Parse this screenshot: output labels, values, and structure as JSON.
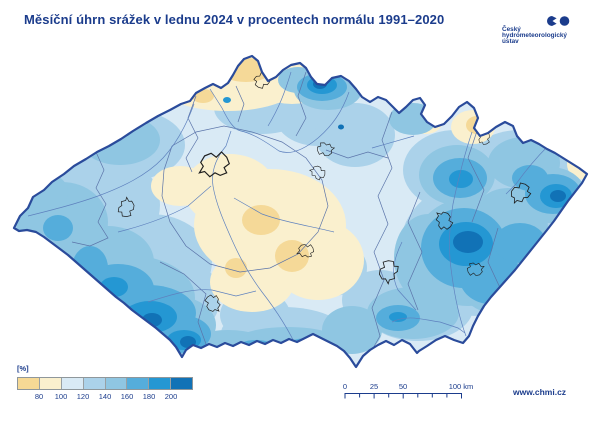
{
  "title": "Měsíční úhrn srážek v lednu 2024 v procentech normálu 1991–2020",
  "logo": {
    "line1": "Český",
    "line2": "hydrometeorologický",
    "line3": "ústav"
  },
  "legend": {
    "unit": "[%]",
    "ticks": [
      "80",
      "100",
      "120",
      "140",
      "160",
      "180",
      "200"
    ],
    "colors": [
      "#F6D995",
      "#FAF0CE",
      "#D9EAF5",
      "#ABD2EA",
      "#8FC6E2",
      "#55ADDB",
      "#2497D3",
      "#1172B6"
    ]
  },
  "scalebar": {
    "labels": [
      "0",
      "25",
      "50",
      "100 km"
    ]
  },
  "footer": {
    "website": "www.chmi.cz"
  },
  "map": {
    "palette": {
      "base": "#D9EAF5",
      "cream": "#FAF0CE",
      "tan": "#F5D998",
      "l3": "#ABD2EA",
      "l4": "#8FC6E2",
      "l5": "#55ADDB",
      "l6": "#2497D3",
      "l7": "#1172B6",
      "border": "#2A4B9B",
      "regionLine": "#5B74A9",
      "river": "#5E81BE",
      "city": "#1F1F1F",
      "ink": "#1B3C8C"
    }
  }
}
